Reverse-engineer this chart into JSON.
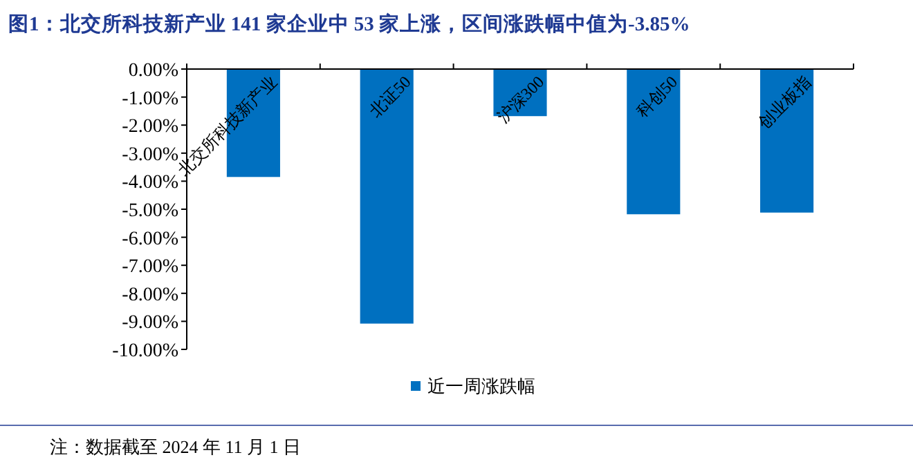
{
  "chart_data": {
    "type": "bar",
    "title": "图1：北交所科技新产业 141 家企业中 53 家上涨，区间涨跌幅中值为-3.85%",
    "categories": [
      "北交所科技新产业",
      "北证50",
      "沪深300",
      "科创50",
      "创业板指"
    ],
    "series": [
      {
        "name": "近一周涨跌幅",
        "color": "#0070c0",
        "values": [
          -3.85,
          -9.08,
          -1.68,
          -5.18,
          -5.12
        ]
      }
    ],
    "ylim": [
      -10,
      0
    ],
    "yticks": [
      {
        "value": 0,
        "label": "0.00%"
      },
      {
        "value": -1,
        "label": "-1.00%"
      },
      {
        "value": -2,
        "label": "-2.00%"
      },
      {
        "value": -3,
        "label": "-3.00%"
      },
      {
        "value": -4,
        "label": "-4.00%"
      },
      {
        "value": -5,
        "label": "-5.00%"
      },
      {
        "value": -6,
        "label": "-6.00%"
      },
      {
        "value": -7,
        "label": "-7.00%"
      },
      {
        "value": -8,
        "label": "-8.00%"
      },
      {
        "value": -9,
        "label": "-9.00%"
      },
      {
        "value": -10,
        "label": "-10.00%"
      }
    ],
    "grid": false,
    "legend": "bottom",
    "annotations": [
      "注：数据截至 2024 年 11 月 1 日"
    ]
  }
}
